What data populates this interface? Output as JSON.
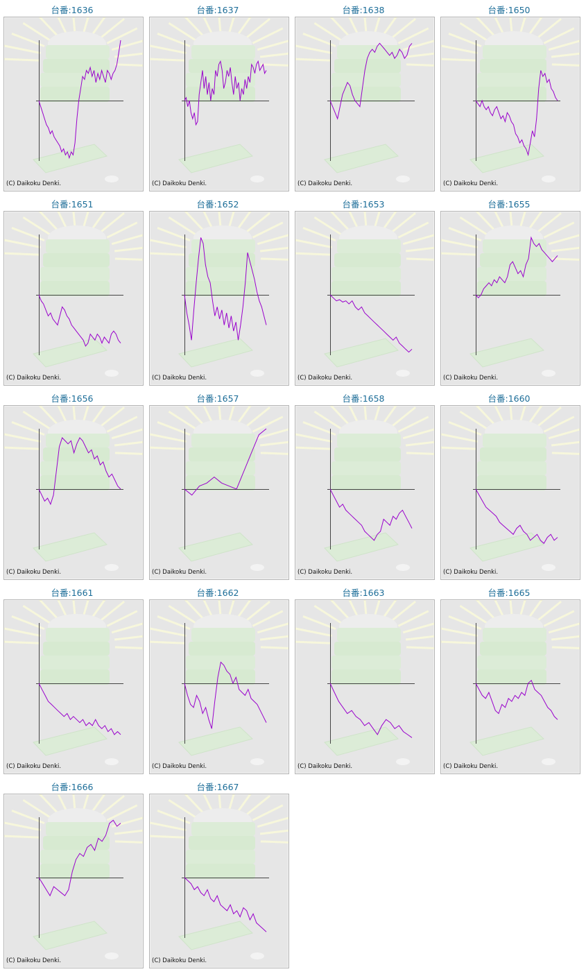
{
  "copyright": "(C) Daikoku Denki.",
  "colors": {
    "title": "#1c6d98",
    "line": "#9900cc",
    "axis": "#444444",
    "panel": "#e6e6e6"
  },
  "chart_data": [
    {
      "type": "line",
      "title": "台番:1636",
      "series": [
        {
          "values": [
            0.0,
            -0.1,
            -0.2,
            -0.3,
            -0.4,
            -0.45,
            -0.55,
            -0.5,
            -0.6,
            -0.65,
            -0.7,
            -0.75,
            -0.85,
            -0.8,
            -0.9,
            -0.85,
            -0.95,
            -0.85,
            -0.9,
            -0.7,
            -0.3,
            0.0,
            0.2,
            0.4,
            0.35,
            0.5,
            0.45,
            0.55,
            0.4,
            0.5,
            0.3,
            0.45,
            0.35,
            0.5,
            0.4,
            0.3,
            0.5,
            0.45,
            0.35,
            0.45,
            0.5,
            0.6,
            0.8,
            1.0
          ]
        }
      ]
    },
    {
      "type": "line",
      "title": "台番:1637",
      "series": [
        {
          "values": [
            0.0,
            0.05,
            -0.1,
            0.0,
            -0.2,
            -0.3,
            -0.2,
            -0.4,
            -0.35,
            0.1,
            0.3,
            0.5,
            0.2,
            0.4,
            0.1,
            0.3,
            0.0,
            0.2,
            0.1,
            0.5,
            0.4,
            0.6,
            0.65,
            0.5,
            0.2,
            0.3,
            0.5,
            0.4,
            0.55,
            0.3,
            0.1,
            0.4,
            0.2,
            0.3,
            0.0,
            0.2,
            0.1,
            0.35,
            0.2,
            0.4,
            0.3,
            0.6,
            0.55,
            0.45,
            0.6,
            0.65,
            0.5,
            0.55,
            0.6,
            0.45,
            0.5
          ]
        }
      ]
    },
    {
      "type": "line",
      "title": "台番:1638",
      "series": [
        {
          "values": [
            0.0,
            -0.1,
            -0.2,
            -0.3,
            -0.1,
            0.1,
            0.2,
            0.3,
            0.25,
            0.1,
            0.0,
            -0.05,
            -0.1,
            0.2,
            0.5,
            0.7,
            0.8,
            0.85,
            0.8,
            0.9,
            0.95,
            0.9,
            0.85,
            0.8,
            0.75,
            0.8,
            0.7,
            0.75,
            0.85,
            0.8,
            0.7,
            0.75,
            0.9,
            0.95
          ]
        }
      ]
    },
    {
      "type": "line",
      "title": "台番:1650",
      "series": [
        {
          "values": [
            0.0,
            -0.05,
            -0.1,
            0.0,
            -0.1,
            -0.15,
            -0.1,
            -0.2,
            -0.25,
            -0.15,
            -0.1,
            -0.2,
            -0.3,
            -0.25,
            -0.35,
            -0.2,
            -0.25,
            -0.35,
            -0.4,
            -0.55,
            -0.6,
            -0.7,
            -0.65,
            -0.75,
            -0.8,
            -0.9,
            -0.7,
            -0.5,
            -0.6,
            -0.3,
            0.2,
            0.5,
            0.4,
            0.45,
            0.3,
            0.35,
            0.2,
            0.15,
            0.05,
            0.0
          ]
        }
      ]
    },
    {
      "type": "line",
      "title": "台番:1651",
      "series": [
        {
          "values": [
            0.0,
            -0.1,
            -0.15,
            -0.25,
            -0.35,
            -0.3,
            -0.4,
            -0.45,
            -0.5,
            -0.35,
            -0.2,
            -0.25,
            -0.35,
            -0.4,
            -0.5,
            -0.55,
            -0.6,
            -0.65,
            -0.7,
            -0.75,
            -0.85,
            -0.8,
            -0.65,
            -0.7,
            -0.75,
            -0.65,
            -0.7,
            -0.8,
            -0.7,
            -0.75,
            -0.8,
            -0.65,
            -0.6,
            -0.65,
            -0.75,
            -0.8
          ]
        }
      ]
    },
    {
      "type": "line",
      "title": "台番:1652",
      "series": [
        {
          "values": [
            0.0,
            -0.3,
            -0.5,
            -0.75,
            -0.25,
            0.2,
            0.6,
            0.95,
            0.85,
            0.5,
            0.3,
            0.2,
            -0.1,
            -0.35,
            -0.2,
            -0.4,
            -0.25,
            -0.5,
            -0.3,
            -0.55,
            -0.35,
            -0.6,
            -0.45,
            -0.75,
            -0.5,
            -0.2,
            0.2,
            0.7,
            0.55,
            0.4,
            0.25,
            0.05,
            -0.1,
            -0.2,
            -0.35,
            -0.5
          ]
        }
      ]
    },
    {
      "type": "line",
      "title": "台番:1653",
      "series": [
        {
          "values": [
            0.0,
            -0.05,
            -0.1,
            -0.08,
            -0.12,
            -0.1,
            -0.15,
            -0.1,
            -0.2,
            -0.25,
            -0.2,
            -0.3,
            -0.35,
            -0.4,
            -0.45,
            -0.5,
            -0.55,
            -0.6,
            -0.65,
            -0.7,
            -0.75,
            -0.7,
            -0.8,
            -0.85,
            -0.9,
            -0.95,
            -0.9
          ]
        }
      ]
    },
    {
      "type": "line",
      "title": "台番:1655",
      "series": [
        {
          "values": [
            0.0,
            -0.05,
            0.0,
            0.1,
            0.15,
            0.2,
            0.15,
            0.25,
            0.2,
            0.3,
            0.25,
            0.2,
            0.3,
            0.5,
            0.55,
            0.45,
            0.35,
            0.4,
            0.3,
            0.5,
            0.6,
            0.95,
            0.85,
            0.8,
            0.85,
            0.75,
            0.7,
            0.65,
            0.6,
            0.55,
            0.6,
            0.65
          ]
        }
      ]
    },
    {
      "type": "line",
      "title": "台番:1656",
      "series": [
        {
          "values": [
            0.0,
            -0.1,
            -0.2,
            -0.15,
            -0.25,
            -0.1,
            0.3,
            0.7,
            0.85,
            0.8,
            0.75,
            0.8,
            0.6,
            0.75,
            0.85,
            0.8,
            0.7,
            0.6,
            0.65,
            0.5,
            0.55,
            0.4,
            0.45,
            0.3,
            0.2,
            0.25,
            0.15,
            0.05,
            0.0
          ]
        }
      ]
    },
    {
      "type": "line",
      "title": "台番:1657",
      "series": [
        {
          "values": [
            0.0,
            -0.1,
            0.05,
            0.1,
            0.2,
            0.1,
            0.05,
            0.0,
            0.3,
            0.6,
            0.9,
            1.0
          ]
        }
      ]
    },
    {
      "type": "line",
      "title": "台番:1658",
      "series": [
        {
          "values": [
            0.0,
            -0.1,
            -0.2,
            -0.3,
            -0.25,
            -0.35,
            -0.4,
            -0.45,
            -0.5,
            -0.55,
            -0.6,
            -0.7,
            -0.75,
            -0.8,
            -0.85,
            -0.75,
            -0.7,
            -0.5,
            -0.55,
            -0.6,
            -0.45,
            -0.5,
            -0.4,
            -0.35,
            -0.45,
            -0.55,
            -0.65
          ]
        }
      ]
    },
    {
      "type": "line",
      "title": "台番:1660",
      "series": [
        {
          "values": [
            0.0,
            -0.1,
            -0.2,
            -0.3,
            -0.35,
            -0.4,
            -0.45,
            -0.55,
            -0.6,
            -0.65,
            -0.7,
            -0.75,
            -0.65,
            -0.6,
            -0.7,
            -0.75,
            -0.85,
            -0.8,
            -0.75,
            -0.85,
            -0.9,
            -0.8,
            -0.75,
            -0.85,
            -0.8
          ]
        }
      ]
    },
    {
      "type": "line",
      "title": "台番:1661",
      "series": [
        {
          "values": [
            0.0,
            -0.1,
            -0.2,
            -0.3,
            -0.35,
            -0.4,
            -0.45,
            -0.5,
            -0.55,
            -0.5,
            -0.6,
            -0.55,
            -0.6,
            -0.65,
            -0.6,
            -0.7,
            -0.65,
            -0.7,
            -0.6,
            -0.7,
            -0.75,
            -0.7,
            -0.8,
            -0.75,
            -0.85,
            -0.8,
            -0.85
          ]
        }
      ]
    },
    {
      "type": "line",
      "title": "台番:1662",
      "series": [
        {
          "values": [
            0.0,
            -0.2,
            -0.35,
            -0.4,
            -0.2,
            -0.3,
            -0.5,
            -0.4,
            -0.6,
            -0.75,
            -0.3,
            0.1,
            0.35,
            0.3,
            0.2,
            0.15,
            0.0,
            0.1,
            -0.1,
            -0.15,
            -0.2,
            -0.1,
            -0.25,
            -0.3,
            -0.35,
            -0.45,
            -0.55,
            -0.65
          ]
        }
      ]
    },
    {
      "type": "line",
      "title": "台番:1663",
      "series": [
        {
          "values": [
            0.0,
            -0.15,
            -0.3,
            -0.4,
            -0.5,
            -0.45,
            -0.55,
            -0.6,
            -0.7,
            -0.65,
            -0.75,
            -0.85,
            -0.7,
            -0.6,
            -0.65,
            -0.75,
            -0.7,
            -0.8,
            -0.85,
            -0.9
          ]
        }
      ]
    },
    {
      "type": "line",
      "title": "台番:1665",
      "series": [
        {
          "values": [
            0.0,
            -0.1,
            -0.2,
            -0.25,
            -0.15,
            -0.3,
            -0.45,
            -0.5,
            -0.35,
            -0.4,
            -0.25,
            -0.3,
            -0.2,
            -0.25,
            -0.15,
            -0.2,
            0.0,
            0.05,
            -0.1,
            -0.15,
            -0.2,
            -0.3,
            -0.4,
            -0.45,
            -0.55,
            -0.6
          ]
        }
      ]
    },
    {
      "type": "line",
      "title": "台番:1666",
      "series": [
        {
          "values": [
            0.0,
            -0.1,
            -0.2,
            -0.3,
            -0.15,
            -0.2,
            -0.25,
            -0.3,
            -0.2,
            0.1,
            0.3,
            0.4,
            0.35,
            0.5,
            0.55,
            0.45,
            0.65,
            0.6,
            0.7,
            0.9,
            0.95,
            0.85,
            0.9
          ]
        }
      ]
    },
    {
      "type": "line",
      "title": "台番:1667",
      "series": [
        {
          "values": [
            0.0,
            -0.05,
            -0.1,
            -0.2,
            -0.15,
            -0.25,
            -0.3,
            -0.2,
            -0.35,
            -0.4,
            -0.3,
            -0.45,
            -0.5,
            -0.55,
            -0.45,
            -0.6,
            -0.55,
            -0.65,
            -0.5,
            -0.55,
            -0.7,
            -0.6,
            -0.75,
            -0.8,
            -0.85,
            -0.9
          ]
        }
      ]
    }
  ]
}
